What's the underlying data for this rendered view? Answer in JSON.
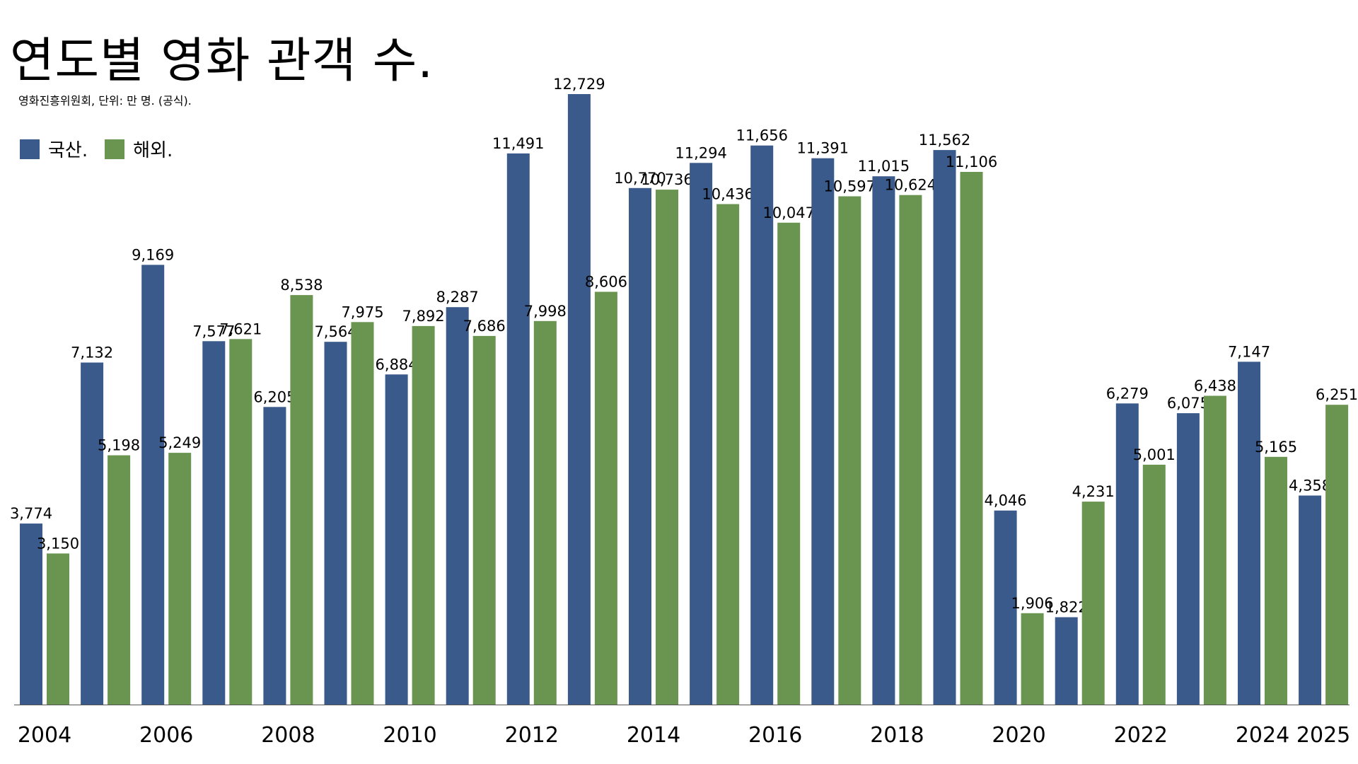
{
  "chart_data": {
    "type": "bar",
    "title": "연도별 영화 관객 수.",
    "subtitle": "영화진흥위원회, 단위: 만 명. (공식).",
    "xlabel": "",
    "ylabel": "",
    "ylim": [
      0,
      12729
    ],
    "grid": false,
    "legend_position": "top-left",
    "categories": [
      "2004",
      "2005",
      "2006",
      "2007",
      "2008",
      "2009",
      "2010",
      "2011",
      "2012",
      "2013",
      "2014",
      "2015",
      "2016",
      "2017",
      "2018",
      "2019",
      "2020",
      "2021",
      "2022",
      "2023",
      "2024",
      "2025"
    ],
    "x_tick_labels": [
      "2004",
      "2006",
      "2008",
      "2010",
      "2012",
      "2014",
      "2016",
      "2018",
      "2020",
      "2022",
      "2024",
      "2025"
    ],
    "series": [
      {
        "name": "국산.",
        "color": "#3a5a8c",
        "values": [
          3774,
          7132,
          9169,
          7577,
          6205,
          7564,
          6884,
          8287,
          11491,
          12729,
          10770,
          11294,
          11656,
          11391,
          11015,
          11562,
          4046,
          1822,
          6279,
          6075,
          7147,
          4358
        ],
        "labels": [
          "3,774",
          "7,132",
          "9,169",
          "7,577",
          "6,205",
          "7,564",
          "6,884",
          "8,287",
          "11,491",
          "12,729",
          "10,770",
          "11,294",
          "11,656",
          "11,391",
          "11,015",
          "11,562",
          "4,046",
          "1,822",
          "6,279",
          "6,075",
          "7,147",
          "4,358"
        ]
      },
      {
        "name": "해외.",
        "color": "#6a9550",
        "values": [
          3150,
          5198,
          5249,
          7621,
          8538,
          7975,
          7892,
          7686,
          7998,
          8606,
          10736,
          10436,
          10047,
          10597,
          10624,
          11106,
          1906,
          4231,
          5001,
          6438,
          5165,
          6251
        ],
        "labels": [
          "3,150",
          "5,198",
          "5,249",
          "7,621",
          "8,538",
          "7,975",
          "7,892",
          "7,686",
          "7,998",
          "8,606",
          "10,736",
          "10,436",
          "10,047",
          "10,597",
          "10,624",
          "11,106",
          "1,906",
          "4,231",
          "5,001",
          "6,438",
          "5,165",
          "6,251"
        ]
      }
    ]
  }
}
